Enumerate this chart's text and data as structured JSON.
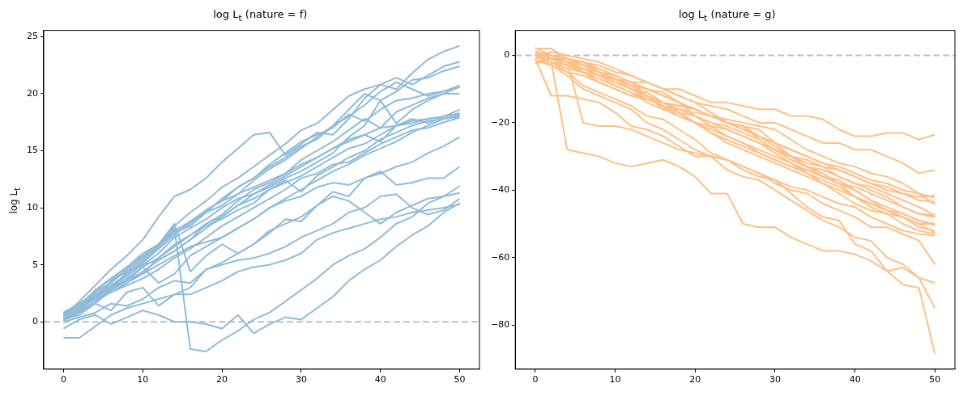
{
  "chart_data": [
    {
      "type": "line",
      "title": "log L$_{t}$ (nature = f)",
      "ylabel": "log L$_{t}$",
      "x": [
        0,
        2,
        4,
        6,
        8,
        10,
        12,
        14,
        16,
        18,
        20,
        22,
        24,
        26,
        28,
        30,
        32,
        34,
        36,
        38,
        40,
        42,
        44,
        46,
        48,
        50
      ],
      "xlim": [
        -2.5,
        52.5
      ],
      "xticks": [
        0,
        10,
        20,
        30,
        40,
        50
      ],
      "ylim": [
        -4.15,
        25.55
      ],
      "yticks": [
        0,
        5,
        10,
        15,
        20,
        25
      ],
      "grid": false,
      "ref_lines": [
        {
          "axis": "y",
          "value": 0,
          "color": "#bfbfbf",
          "line_style": "dashed"
        }
      ],
      "series": [
        {
          "color": "#8fbbd9",
          "values": [
            0.5,
            1.8,
            3.2,
            4.6,
            5.8,
            7.2,
            9.2,
            11.0,
            11.6,
            12.6,
            14.0,
            15.2,
            16.4,
            16.6,
            14.6,
            15.6,
            16.6,
            16.4,
            17.8,
            19.6,
            20.8,
            20.4,
            21.8,
            23.0,
            23.7,
            24.2
          ]
        },
        {
          "color": "#8fbbd9",
          "values": [
            0.8,
            1.6,
            2.6,
            3.8,
            4.8,
            6.0,
            6.8,
            8.4,
            9.6,
            10.6,
            11.8,
            12.6,
            13.6,
            14.6,
            15.6,
            16.8,
            17.4,
            18.6,
            19.8,
            20.4,
            20.8,
            21.4,
            20.8,
            21.6,
            22.4,
            22.8
          ]
        },
        {
          "color": "#8fbbd9",
          "values": [
            0.4,
            1.2,
            2.2,
            3.6,
            4.4,
            5.4,
            6.6,
            7.8,
            8.6,
            9.8,
            10.6,
            11.2,
            12.4,
            13.4,
            14.2,
            15.2,
            16.2,
            17.2,
            18.6,
            20.0,
            19.4,
            20.2,
            21.2,
            21.4,
            22.0,
            22.4
          ]
        },
        {
          "color": "#8fbbd9",
          "values": [
            0.2,
            1.0,
            2.4,
            3.2,
            4.2,
            5.2,
            6.4,
            7.6,
            8.8,
            9.6,
            10.8,
            11.8,
            12.6,
            13.8,
            14.8,
            15.8,
            16.4,
            17.0,
            18.2,
            17.6,
            18.6,
            19.4,
            19.6,
            20.0,
            20.2,
            20.7
          ]
        },
        {
          "color": "#8fbbd9",
          "values": [
            0.6,
            1.4,
            2.0,
            3.0,
            3.8,
            4.8,
            5.6,
            6.6,
            7.6,
            8.6,
            9.4,
            10.6,
            11.6,
            12.2,
            13.0,
            14.2,
            15.0,
            15.8,
            16.8,
            17.8,
            17.0,
            18.4,
            19.0,
            19.6,
            20.0,
            20.6
          ]
        },
        {
          "color": "#8fbbd9",
          "values": [
            0.3,
            0.9,
            1.8,
            2.8,
            3.6,
            4.4,
            5.4,
            6.2,
            7.2,
            8.2,
            9.2,
            10.2,
            11.2,
            11.8,
            12.6,
            13.2,
            14.0,
            14.8,
            16.2,
            17.2,
            19.4,
            17.4,
            18.6,
            19.4,
            20.0,
            20.0
          ]
        },
        {
          "color": "#8fbbd9",
          "values": [
            0.4,
            1.2,
            2.6,
            3.4,
            4.6,
            5.6,
            6.8,
            7.8,
            8.4,
            9.6,
            10.2,
            11.2,
            11.8,
            12.4,
            13.0,
            13.8,
            14.4,
            15.2,
            16.0,
            16.4,
            15.8,
            17.2,
            17.8,
            17.4,
            18.0,
            18.6
          ]
        },
        {
          "color": "#8fbbd9",
          "values": [
            0.2,
            1.0,
            1.8,
            2.6,
            3.4,
            4.2,
            5.6,
            6.8,
            7.6,
            8.4,
            9.0,
            9.8,
            10.4,
            11.6,
            12.2,
            12.8,
            13.6,
            14.4,
            15.2,
            15.6,
            16.4,
            17.2,
            17.6,
            17.8,
            18.0,
            18.3
          ]
        },
        {
          "color": "#8fbbd9",
          "values": [
            0.1,
            0.8,
            1.6,
            2.8,
            3.6,
            4.8,
            3.4,
            4.2,
            5.8,
            6.6,
            7.4,
            8.2,
            9.0,
            10.0,
            10.8,
            11.6,
            12.4,
            13.2,
            13.8,
            14.6,
            15.2,
            15.8,
            16.6,
            17.2,
            17.8,
            18.1
          ]
        },
        {
          "color": "#8fbbd9",
          "values": [
            0.6,
            1.4,
            2.2,
            2.8,
            4.4,
            5.0,
            5.4,
            6.2,
            7.2,
            8.6,
            9.2,
            10.2,
            10.8,
            11.6,
            12.4,
            11.4,
            12.8,
            13.6,
            14.4,
            15.0,
            16.0,
            16.6,
            17.2,
            17.6,
            17.8,
            18.0
          ]
        },
        {
          "color": "#8fbbd9",
          "values": [
            0.3,
            1.2,
            2.0,
            2.6,
            3.2,
            3.8,
            4.6,
            5.6,
            6.4,
            7.4,
            8.4,
            9.2,
            10.0,
            10.8,
            11.6,
            12.6,
            13.0,
            13.8,
            14.0,
            14.8,
            15.6,
            16.2,
            16.8,
            17.0,
            17.5,
            17.9
          ]
        },
        {
          "color": "#8fbbd9",
          "values": [
            0.5,
            1.0,
            2.4,
            3.0,
            3.6,
            4.2,
            5.0,
            5.8,
            6.6,
            7.0,
            7.4,
            8.2,
            9.0,
            10.0,
            10.6,
            11.0,
            11.8,
            12.2,
            12.0,
            12.6,
            13.0,
            13.6,
            14.0,
            14.8,
            15.4,
            16.2
          ]
        },
        {
          "color": "#8fbbd9",
          "values": [
            0.4,
            1.2,
            2.0,
            3.6,
            4.6,
            5.6,
            6.8,
            8.6,
            4.4,
            5.8,
            6.8,
            6.0,
            6.8,
            8.0,
            8.6,
            9.2,
            10.2,
            11.4,
            11.0,
            12.6,
            13.2,
            12.0,
            12.2,
            12.6,
            12.6,
            13.6
          ]
        },
        {
          "color": "#8fbbd9",
          "values": [
            0.5,
            1.2,
            2.2,
            3.0,
            4.2,
            5.2,
            6.6,
            8.2,
            -2.4,
            -2.6,
            -1.6,
            -0.8,
            0.2,
            0.8,
            1.8,
            2.8,
            3.8,
            5.0,
            5.8,
            6.4,
            7.4,
            8.6,
            9.2,
            10.4,
            11.0,
            11.9
          ]
        },
        {
          "color": "#8fbbd9",
          "values": [
            0.2,
            0.6,
            1.6,
            1.0,
            2.6,
            3.0,
            1.4,
            2.4,
            3.0,
            4.6,
            5.2,
            6.0,
            6.8,
            7.8,
            9.0,
            8.8,
            10.2,
            11.0,
            10.6,
            9.6,
            8.6,
            9.6,
            10.2,
            10.8,
            11.0,
            11.3
          ]
        },
        {
          "color": "#8fbbd9",
          "values": [
            0.0,
            0.4,
            0.8,
            1.6,
            1.4,
            2.0,
            3.0,
            3.6,
            3.4,
            4.6,
            5.0,
            5.4,
            5.6,
            6.0,
            6.6,
            7.4,
            8.0,
            8.6,
            9.6,
            10.0,
            11.0,
            11.2,
            10.0,
            9.4,
            9.8,
            10.8
          ]
        },
        {
          "color": "#8fbbd9",
          "values": [
            -0.6,
            0.2,
            0.6,
            -0.2,
            0.4,
            1.0,
            0.6,
            0.0,
            0.0,
            -0.2,
            -0.6,
            0.6,
            -1.0,
            -0.2,
            0.4,
            0.2,
            1.2,
            2.2,
            3.6,
            4.6,
            5.4,
            6.6,
            7.6,
            8.4,
            9.6,
            10.4
          ]
        },
        {
          "color": "#8fbbd9",
          "values": [
            -1.4,
            -1.4,
            -0.4,
            0.6,
            1.2,
            1.6,
            2.0,
            2.4,
            2.4,
            3.0,
            3.6,
            4.4,
            4.8,
            5.0,
            5.4,
            6.0,
            7.2,
            7.8,
            8.2,
            8.6,
            9.0,
            9.2,
            9.6,
            9.8,
            10.0,
            10.3
          ]
        },
        {
          "color": "#8fbbd9",
          "values": [
            0.8,
            1.6,
            2.4,
            3.2,
            4.0,
            5.0,
            6.0,
            7.4,
            8.2,
            9.0,
            10.0,
            10.8,
            11.2,
            12.0,
            12.8,
            13.6,
            14.4,
            15.2,
            15.8,
            16.4,
            17.0,
            17.2,
            17.4,
            17.8,
            18.0,
            18.2
          ]
        },
        {
          "color": "#8fbbd9",
          "values": [
            0.7,
            1.4,
            2.8,
            3.8,
            4.8,
            5.8,
            6.8,
            8.0,
            8.8,
            9.8,
            10.6,
            11.8,
            12.6,
            13.6,
            14.4,
            15.4,
            16.0,
            17.2,
            18.0,
            19.0,
            20.2,
            21.0,
            20.4,
            19.8,
            20.2,
            20.7
          ]
        }
      ]
    },
    {
      "type": "line",
      "title": "log L$_{t}$ (nature = g)",
      "x": [
        0,
        2,
        4,
        6,
        8,
        10,
        12,
        14,
        16,
        18,
        20,
        22,
        24,
        26,
        28,
        30,
        32,
        34,
        36,
        38,
        40,
        42,
        44,
        46,
        48,
        50
      ],
      "xlim": [
        -2.5,
        52.5
      ],
      "xticks": [
        0,
        10,
        20,
        30,
        40,
        50
      ],
      "ylim": [
        -93.1,
        7.4
      ],
      "yticks": [
        -80,
        -60,
        -40,
        -20,
        0
      ],
      "grid": false,
      "ref_lines": [
        {
          "axis": "y",
          "value": 0,
          "color": "#bfbfbf",
          "line_style": "dashed"
        }
      ],
      "series": [
        {
          "color": "#ffbf86",
          "values": [
            0,
            1,
            0,
            -1,
            -2,
            -4,
            -6,
            -8,
            -10,
            -10,
            -12,
            -14,
            -14,
            -15,
            -16,
            -16,
            -18,
            -18,
            -19,
            -22,
            -24,
            -24,
            -23,
            -23,
            -25,
            -23.5
          ]
        },
        {
          "color": "#ffbf86",
          "values": [
            0,
            -1,
            -2,
            -3,
            -4,
            -6,
            -8,
            -8,
            -10,
            -12,
            -14,
            -15,
            -16,
            -18,
            -20,
            -20,
            -22,
            -24,
            -26,
            -26,
            -28,
            -28,
            -30,
            -32,
            -35,
            -34
          ]
        },
        {
          "color": "#ffbf86",
          "values": [
            0,
            -2,
            -3,
            -4,
            -6,
            -7,
            -8,
            -12,
            -14,
            -15,
            -16,
            -18,
            -19,
            -20,
            -21,
            -22,
            -25,
            -28,
            -30,
            -32,
            -33,
            -35,
            -36,
            -38,
            -41,
            -42.3
          ]
        },
        {
          "color": "#ffbf86",
          "values": [
            -2.5,
            -1,
            -1,
            -2,
            -5,
            -6,
            -8,
            -10,
            -12,
            -14,
            -16,
            -18,
            -20,
            -22,
            -24,
            -26,
            -28,
            -30,
            -32,
            -34,
            -36,
            -38,
            -40,
            -41,
            -42,
            -41.6
          ]
        },
        {
          "color": "#ffbf86",
          "values": [
            0,
            -1,
            -3,
            -5,
            -6,
            -8,
            -10,
            -11,
            -14,
            -15,
            -16,
            -18,
            -20,
            -21,
            -24,
            -27,
            -30,
            -31,
            -33,
            -34,
            -36,
            -38,
            -39,
            -41,
            -43,
            -43.5
          ]
        },
        {
          "color": "#ffbf86",
          "values": [
            1,
            0,
            -2,
            -5,
            -8,
            -10,
            -12,
            -13,
            -14,
            -16,
            -17,
            -18,
            -20,
            -21,
            -22,
            -26,
            -30,
            -32,
            -33,
            -36,
            -38,
            -40,
            -42,
            -45,
            -47,
            -47.5
          ]
        },
        {
          "color": "#ffbf86",
          "values": [
            0,
            -1,
            -2,
            -4,
            -6,
            -7,
            -9,
            -12,
            -16,
            -16,
            -18,
            -21,
            -22,
            -24,
            -26,
            -28,
            -30,
            -33,
            -35,
            -38,
            -39,
            -41,
            -43,
            -45,
            -47,
            -48
          ]
        },
        {
          "color": "#ffbf86",
          "values": [
            0,
            -2,
            -4,
            -5,
            -7,
            -9,
            -11,
            -14,
            -16,
            -18,
            -20,
            -21,
            -24,
            -26,
            -28,
            -30,
            -32,
            -34,
            -36,
            -38,
            -42,
            -44,
            -46,
            -47,
            -49,
            -50
          ]
        },
        {
          "color": "#ffbf86",
          "values": [
            -1.5,
            -3,
            -5,
            -6,
            -8,
            -10,
            -12,
            -13,
            -14,
            -17,
            -20,
            -23,
            -25,
            -27,
            -29,
            -31,
            -33,
            -34,
            -36,
            -38,
            -40,
            -43,
            -45,
            -47,
            -49,
            -50.5
          ]
        },
        {
          "color": "#ffbf86",
          "values": [
            0.8,
            -1,
            -2,
            -2,
            -4,
            -6,
            -8,
            -10,
            -11,
            -14,
            -16,
            -18,
            -20,
            -21,
            -25,
            -28,
            -31,
            -33,
            -36,
            -37,
            -40,
            -43,
            -46,
            -48,
            -51,
            -52
          ]
        },
        {
          "color": "#ffbf86",
          "values": [
            0,
            -1,
            -3,
            -4,
            -6,
            -9,
            -11,
            -13,
            -15,
            -17,
            -18,
            -20,
            -22,
            -24,
            -26,
            -29,
            -32,
            -35,
            -38,
            -41,
            -44,
            -46,
            -47,
            -50,
            -52,
            -53
          ]
        },
        {
          "color": "#ffbf86",
          "values": [
            2.2,
            0,
            -2,
            -20,
            -21,
            -21,
            -22,
            -24,
            -26,
            -28,
            -29,
            -30,
            -31,
            -34,
            -36,
            -37,
            -39,
            -40,
            -42,
            -44,
            -45,
            -48,
            -50,
            -52,
            -53,
            -53.5
          ]
        },
        {
          "color": "#ffbf86",
          "values": [
            -1,
            -12,
            -12,
            -13,
            -14,
            -17,
            -21,
            -22,
            -24,
            -27,
            -30,
            -30,
            -31,
            -33,
            -35,
            -38,
            -40,
            -41,
            -44,
            -46,
            -48,
            -51,
            -51,
            -53,
            -55,
            -62
          ]
        },
        {
          "color": "#ffbf86",
          "values": [
            0,
            -3,
            -6,
            -10,
            -12,
            -14,
            -16,
            -20,
            -22,
            -25,
            -28,
            -30,
            -34,
            -36,
            -37,
            -40,
            -43,
            -46,
            -49,
            -51,
            -54,
            -55,
            -60,
            -62,
            -66,
            -67.5
          ]
        },
        {
          "color": "#ffbf86",
          "values": [
            0,
            -2,
            -28,
            -29,
            -30,
            -32,
            -33,
            -32,
            -31,
            -33,
            -36,
            -41,
            -41,
            -50,
            -51,
            -51,
            -54,
            -56,
            -58,
            -58,
            -59,
            -61,
            -64,
            -63,
            -66,
            -75
          ]
        },
        {
          "color": "#ffbf86",
          "values": [
            0,
            -2,
            -5,
            -9,
            -11,
            -13,
            -15,
            -18,
            -19,
            -22,
            -25,
            -29,
            -31,
            -33,
            -35,
            -37,
            -41,
            -45,
            -48,
            -49,
            -56,
            -58,
            -64,
            -68,
            -69,
            -88.5
          ]
        },
        {
          "color": "#ffbf86",
          "values": [
            -1,
            0,
            -1,
            -3,
            -5,
            -8,
            -10,
            -12,
            -15,
            -17,
            -20,
            -22,
            -24,
            -26,
            -29,
            -31,
            -33,
            -35,
            -37,
            -39,
            -42,
            -44,
            -46,
            -48,
            -50,
            -52.6
          ]
        },
        {
          "color": "#ffbf86",
          "values": [
            -1.8,
            -1,
            -2,
            -4,
            -5,
            -7,
            -9,
            -10,
            -12,
            -14,
            -18,
            -20,
            -21,
            -23,
            -25,
            -28,
            -31,
            -33,
            -34,
            -36,
            -38,
            -39,
            -41,
            -43,
            -45,
            -47.5
          ]
        },
        {
          "color": "#ffbf86",
          "values": [
            2,
            2,
            -1,
            -3,
            -5,
            -7,
            -10,
            -13,
            -15,
            -18,
            -20,
            -23,
            -26,
            -28,
            -30,
            -32,
            -34,
            -36,
            -38,
            -40,
            -42,
            -45,
            -47,
            -48,
            -50,
            -50
          ]
        },
        {
          "color": "#ffbf86",
          "values": [
            1.2,
            -1,
            -1,
            -2,
            -3,
            -5,
            -6,
            -8,
            -10,
            -12,
            -14,
            -17,
            -20,
            -22,
            -24,
            -26,
            -28,
            -30,
            -32,
            -33,
            -35,
            -37,
            -38,
            -40,
            -41,
            -44.2
          ]
        }
      ]
    }
  ]
}
